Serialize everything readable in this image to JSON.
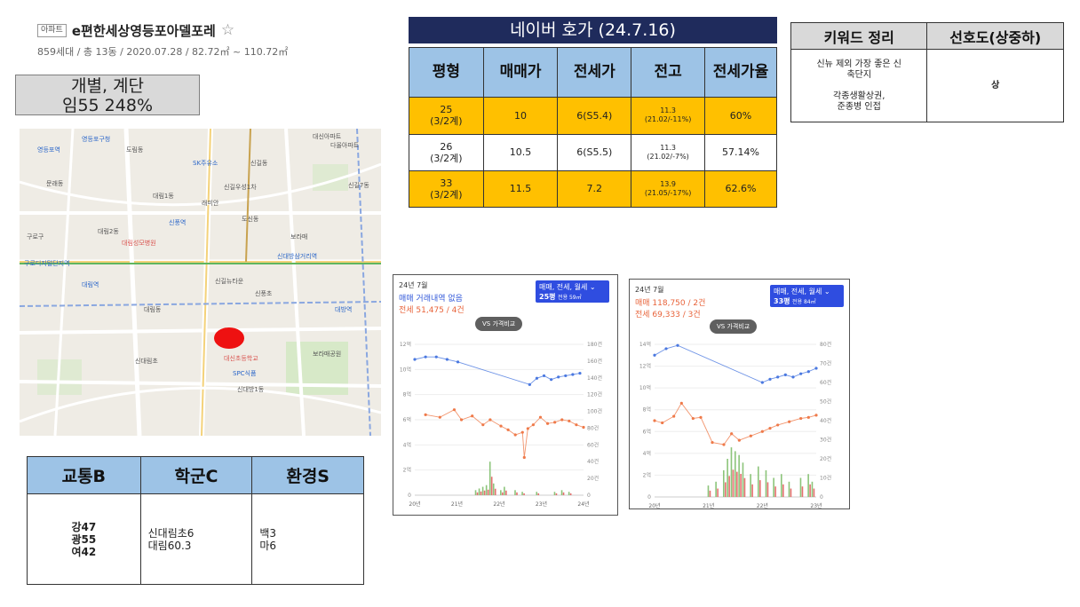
{
  "header": {
    "badge": "아파트",
    "name": "e편한세상영등포아델포레",
    "star": "☆",
    "meta": "859세대 / 총 13동 / 2020.07.28 / 82.72㎡ ~ 110.72㎡"
  },
  "type_box": {
    "line1": "개별, 계단",
    "line2": "임55 248%"
  },
  "map": {
    "labels": [
      "대신아파트",
      "다올아파트",
      "도림동",
      "신길동",
      "SK주유소",
      "대림1동",
      "영등포역",
      "신길우성1차",
      "래미안",
      "대림2동",
      "보라매",
      "신풍역",
      "도신동",
      "신대방삼거리역",
      "대림역",
      "구로디지털단지역",
      "대림성모병원",
      "신길뉴타운",
      "신풍초",
      "보라매공원",
      "대림동",
      "신대방1동",
      "SPC식품",
      "대신초등학교",
      "신대림초",
      "구로구",
      "문래동",
      "신길7동",
      "대방역",
      "영등포구청"
    ]
  },
  "score_table": {
    "headers": [
      "교통B",
      "학군C",
      "환경S"
    ],
    "traffic": [
      "강47",
      "광55",
      "여42"
    ],
    "school": [
      "신대림초6",
      "대림60.3"
    ],
    "env": [
      "백3",
      "마6"
    ]
  },
  "naver": {
    "title": "네이버 호가 (24.7.16)",
    "headers": [
      "평형",
      "매매가",
      "전세가",
      "전고",
      "전세가율"
    ],
    "rows": [
      {
        "size": "25",
        "size2": "(3/2계)",
        "sale": "10",
        "jeonse": "6(S5.4)",
        "peak": "11.3",
        "peak2": "(21.02/-11%)",
        "ratio": "60%"
      },
      {
        "size": "26",
        "size2": "(3/2계)",
        "sale": "10.5",
        "jeonse": "6(S5.5)",
        "peak": "11.3",
        "peak2": "(21.02/-7%)",
        "ratio": "57.14%"
      },
      {
        "size": "33",
        "size2": "(3/2계)",
        "sale": "11.5",
        "jeonse": "7.2",
        "peak": "13.9",
        "peak2": "(21.05/-17%)",
        "ratio": "62.6%"
      }
    ]
  },
  "keyword": {
    "headers": [
      "키워드 정리",
      "선호도(상중하)"
    ],
    "line1": "신뉴 제외 가장 좋은 신",
    "line2": "축단지",
    "line3": "각종생활상권,",
    "line4": "준종병 인접",
    "pref": "상"
  },
  "charts": {
    "colors": {
      "sale": "#4a78e0",
      "jeonse": "#ef7a4a",
      "bar_sale": "#e56f6f",
      "bar_jeonse": "#8cc47a",
      "bar_gray": "#c8c8c8"
    },
    "chart_data": [
      {
        "type": "line",
        "period": "24년 7월",
        "status_sale": "매매 거래내역 없음",
        "status_jeonse": "전세 51,475 / 4건",
        "selector": "매매, 전세, 월세",
        "selector_size": "25평",
        "selector_area": "전용 59㎡",
        "vs": "VS 가격비교",
        "x_ticks": [
          "20년",
          "21년",
          "22년",
          "23년",
          "24년"
        ],
        "y_ticks": [
          "0",
          "2억",
          "4억",
          "6억",
          "8억",
          "10억",
          "12억"
        ],
        "y2_ticks": [
          "0",
          "20건",
          "40건",
          "60건",
          "80건",
          "100건",
          "120건",
          "140건",
          "160건",
          "180건"
        ],
        "ylim": [
          0,
          12
        ],
        "y2lim": [
          0,
          180
        ],
        "xlim": [
          2020.0,
          2024.7
        ],
        "series": [
          {
            "name": "매매",
            "x": [
              2020.0,
              2020.3,
              2020.6,
              2020.9,
              2021.2,
              2023.2,
              2023.4,
              2023.6,
              2023.8,
              2024.0,
              2024.2,
              2024.4,
              2024.6
            ],
            "y": [
              10.8,
              11.0,
              11.0,
              10.8,
              10.6,
              8.8,
              9.3,
              9.5,
              9.2,
              9.4,
              9.5,
              9.6,
              9.7
            ]
          },
          {
            "name": "전세",
            "x": [
              2020.3,
              2020.7,
              2021.1,
              2021.3,
              2021.6,
              2021.9,
              2022.1,
              2022.4,
              2022.6,
              2022.8,
              2023.0,
              2023.05,
              2023.15,
              2023.3,
              2023.5,
              2023.7,
              2023.9,
              2024.1,
              2024.3,
              2024.5,
              2024.7
            ],
            "y": [
              6.4,
              6.2,
              6.8,
              6.0,
              6.3,
              5.6,
              6.0,
              5.5,
              5.2,
              4.8,
              5.0,
              3.0,
              5.3,
              5.6,
              6.2,
              5.7,
              5.8,
              6.0,
              5.9,
              5.6,
              5.4
            ]
          }
        ],
        "bars": {
          "x": [
            2021.7,
            2021.8,
            2021.9,
            2022.0,
            2022.1,
            2022.2,
            2022.4,
            2022.5,
            2022.8,
            2023.0,
            2023.4,
            2023.9,
            2024.1,
            2024.3
          ],
          "v": [
            6,
            8,
            10,
            12,
            40,
            14,
            6,
            10,
            6,
            4,
            4,
            4,
            6,
            4
          ]
        }
      },
      {
        "type": "line",
        "period": "24년 7월",
        "status_sale": "매매 118,750 / 2건",
        "status_jeonse": "전세 69,333 / 3건",
        "selector": "매매, 전세, 월세",
        "selector_size": "33평",
        "selector_area": "전용 84㎡",
        "vs": "VS 가격비교",
        "x_ticks": [
          "20년",
          "21년",
          "22년",
          "23년"
        ],
        "y_ticks": [
          "0",
          "2억",
          "4억",
          "6억",
          "8억",
          "10억",
          "12억",
          "14억"
        ],
        "y2_ticks": [
          "0",
          "10건",
          "20건",
          "30건",
          "40건",
          "50건",
          "60건",
          "70건",
          "80건"
        ],
        "ylim": [
          0,
          14
        ],
        "y2lim": [
          0,
          80
        ],
        "xlim": [
          2020.0,
          2024.2
        ],
        "series": [
          {
            "name": "매매",
            "x": [
              2020.0,
              2020.3,
              2020.6,
              2022.8,
              2023.0,
              2023.2,
              2023.4,
              2023.6,
              2023.8,
              2024.0,
              2024.2
            ],
            "y": [
              13.0,
              13.6,
              13.9,
              10.5,
              10.8,
              11.0,
              11.2,
              11.0,
              11.3,
              11.5,
              11.8
            ]
          },
          {
            "name": "전세",
            "x": [
              2020.0,
              2020.2,
              2020.5,
              2020.7,
              2021.0,
              2021.2,
              2021.5,
              2021.8,
              2022.0,
              2022.2,
              2022.5,
              2022.8,
              2023.0,
              2023.2,
              2023.5,
              2023.8,
              2024.0,
              2024.2
            ],
            "y": [
              7.0,
              6.8,
              7.4,
              8.6,
              7.2,
              7.3,
              5.0,
              4.8,
              5.8,
              5.2,
              5.6,
              6.0,
              6.3,
              6.6,
              6.9,
              7.2,
              7.3,
              7.5
            ]
          }
        ],
        "bars": {
          "x": [
            2021.4,
            2021.6,
            2021.8,
            2021.9,
            2022.0,
            2022.1,
            2022.2,
            2022.3,
            2022.5,
            2022.7,
            2022.9,
            2023.1,
            2023.3,
            2023.5,
            2023.8,
            2024.0,
            2024.1
          ],
          "v": [
            6,
            8,
            14,
            20,
            26,
            24,
            22,
            18,
            12,
            16,
            14,
            10,
            12,
            8,
            10,
            12,
            8
          ]
        }
      }
    ]
  }
}
